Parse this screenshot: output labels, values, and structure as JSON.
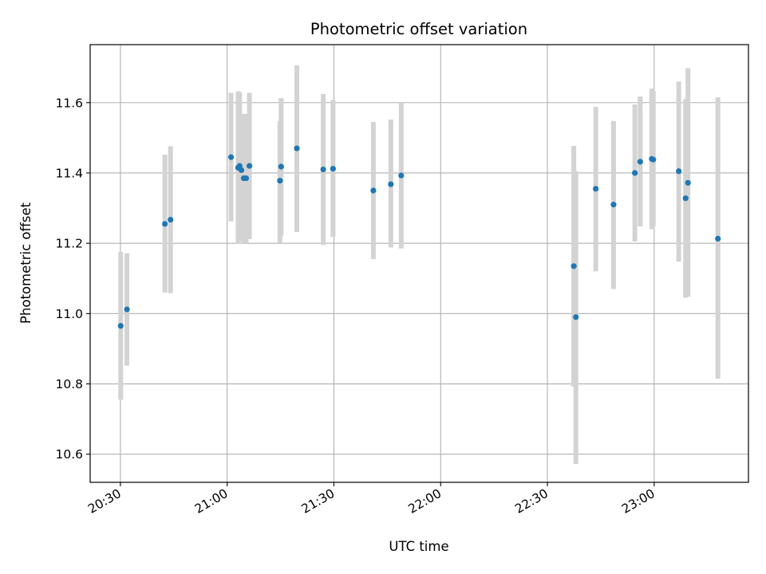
{
  "chart_data": {
    "type": "scatter",
    "title": "Photometric offset variation",
    "xlabel": "UTC time",
    "ylabel": "Photometric offset",
    "x_unit": "UTC time (HH:MM)",
    "xlim": [
      "20:21:30",
      "23:26:30"
    ],
    "ylim": [
      10.52,
      11.765
    ],
    "x_ticks": [
      "20:30",
      "21:00",
      "21:30",
      "22:00",
      "22:30",
      "23:00"
    ],
    "y_ticks": [
      10.6,
      10.8,
      11.0,
      11.2,
      11.4,
      11.6
    ],
    "y_tick_labels": [
      "10.6",
      "10.8",
      "11.0",
      "11.2",
      "11.4",
      "11.6"
    ],
    "grid": true,
    "colors": {
      "points": "#1f77b4",
      "error_bars": "#d3d3d3",
      "grid": "#b0b0b0"
    },
    "series": [
      {
        "points": [
          {
            "x": "20:30:05",
            "y": 10.965,
            "lo": 10.755,
            "hi": 11.175
          },
          {
            "x": "20:31:50",
            "y": 11.012,
            "lo": 10.852,
            "hi": 11.172
          },
          {
            "x": "20:42:30",
            "y": 11.255,
            "lo": 11.06,
            "hi": 11.452
          },
          {
            "x": "20:44:05",
            "y": 11.267,
            "lo": 11.058,
            "hi": 11.476
          },
          {
            "x": "21:01:05",
            "y": 11.445,
            "lo": 11.262,
            "hi": 11.628
          },
          {
            "x": "21:03:05",
            "y": 11.415,
            "lo": 11.198,
            "hi": 11.632
          },
          {
            "x": "21:03:30",
            "y": 11.42,
            "lo": 11.205,
            "hi": 11.63
          },
          {
            "x": "21:04:00",
            "y": 11.408,
            "lo": 11.222,
            "hi": 11.568
          },
          {
            "x": "21:04:40",
            "y": 11.385,
            "lo": 11.2,
            "hi": 11.568
          },
          {
            "x": "21:05:20",
            "y": 11.385,
            "lo": 11.202,
            "hi": 11.568
          },
          {
            "x": "21:06:15",
            "y": 11.42,
            "lo": 11.212,
            "hi": 11.628
          },
          {
            "x": "21:14:50",
            "y": 11.378,
            "lo": 11.202,
            "hi": 11.548
          },
          {
            "x": "21:15:10",
            "y": 11.418,
            "lo": 11.222,
            "hi": 11.613
          },
          {
            "x": "21:19:35",
            "y": 11.47,
            "lo": 11.232,
            "hi": 11.706
          },
          {
            "x": "21:27:00",
            "y": 11.41,
            "lo": 11.195,
            "hi": 11.625
          },
          {
            "x": "21:29:45",
            "y": 11.412,
            "lo": 11.218,
            "hi": 11.608
          },
          {
            "x": "21:41:05",
            "y": 11.35,
            "lo": 11.155,
            "hi": 11.545
          },
          {
            "x": "21:46:00",
            "y": 11.368,
            "lo": 11.188,
            "hi": 11.552
          },
          {
            "x": "21:48:55",
            "y": 11.393,
            "lo": 11.185,
            "hi": 11.6
          },
          {
            "x": "22:37:25",
            "y": 11.135,
            "lo": 10.792,
            "hi": 11.477
          },
          {
            "x": "22:38:00",
            "y": 10.99,
            "lo": 10.572,
            "hi": 11.405
          },
          {
            "x": "22:43:35",
            "y": 11.355,
            "lo": 11.12,
            "hi": 11.588
          },
          {
            "x": "22:48:35",
            "y": 11.31,
            "lo": 11.07,
            "hi": 11.548
          },
          {
            "x": "22:54:35",
            "y": 11.4,
            "lo": 11.205,
            "hi": 11.595
          },
          {
            "x": "22:56:05",
            "y": 11.432,
            "lo": 11.248,
            "hi": 11.618
          },
          {
            "x": "22:59:20",
            "y": 11.44,
            "lo": 11.24,
            "hi": 11.64
          },
          {
            "x": "22:59:45",
            "y": 11.438,
            "lo": 11.248,
            "hi": 11.632
          },
          {
            "x": "23:06:55",
            "y": 11.405,
            "lo": 11.148,
            "hi": 11.66
          },
          {
            "x": "23:08:50",
            "y": 11.328,
            "lo": 11.045,
            "hi": 11.61
          },
          {
            "x": "23:09:30",
            "y": 11.372,
            "lo": 11.048,
            "hi": 11.698
          },
          {
            "x": "23:17:55",
            "y": 11.213,
            "lo": 10.815,
            "hi": 11.615
          }
        ]
      }
    ]
  }
}
